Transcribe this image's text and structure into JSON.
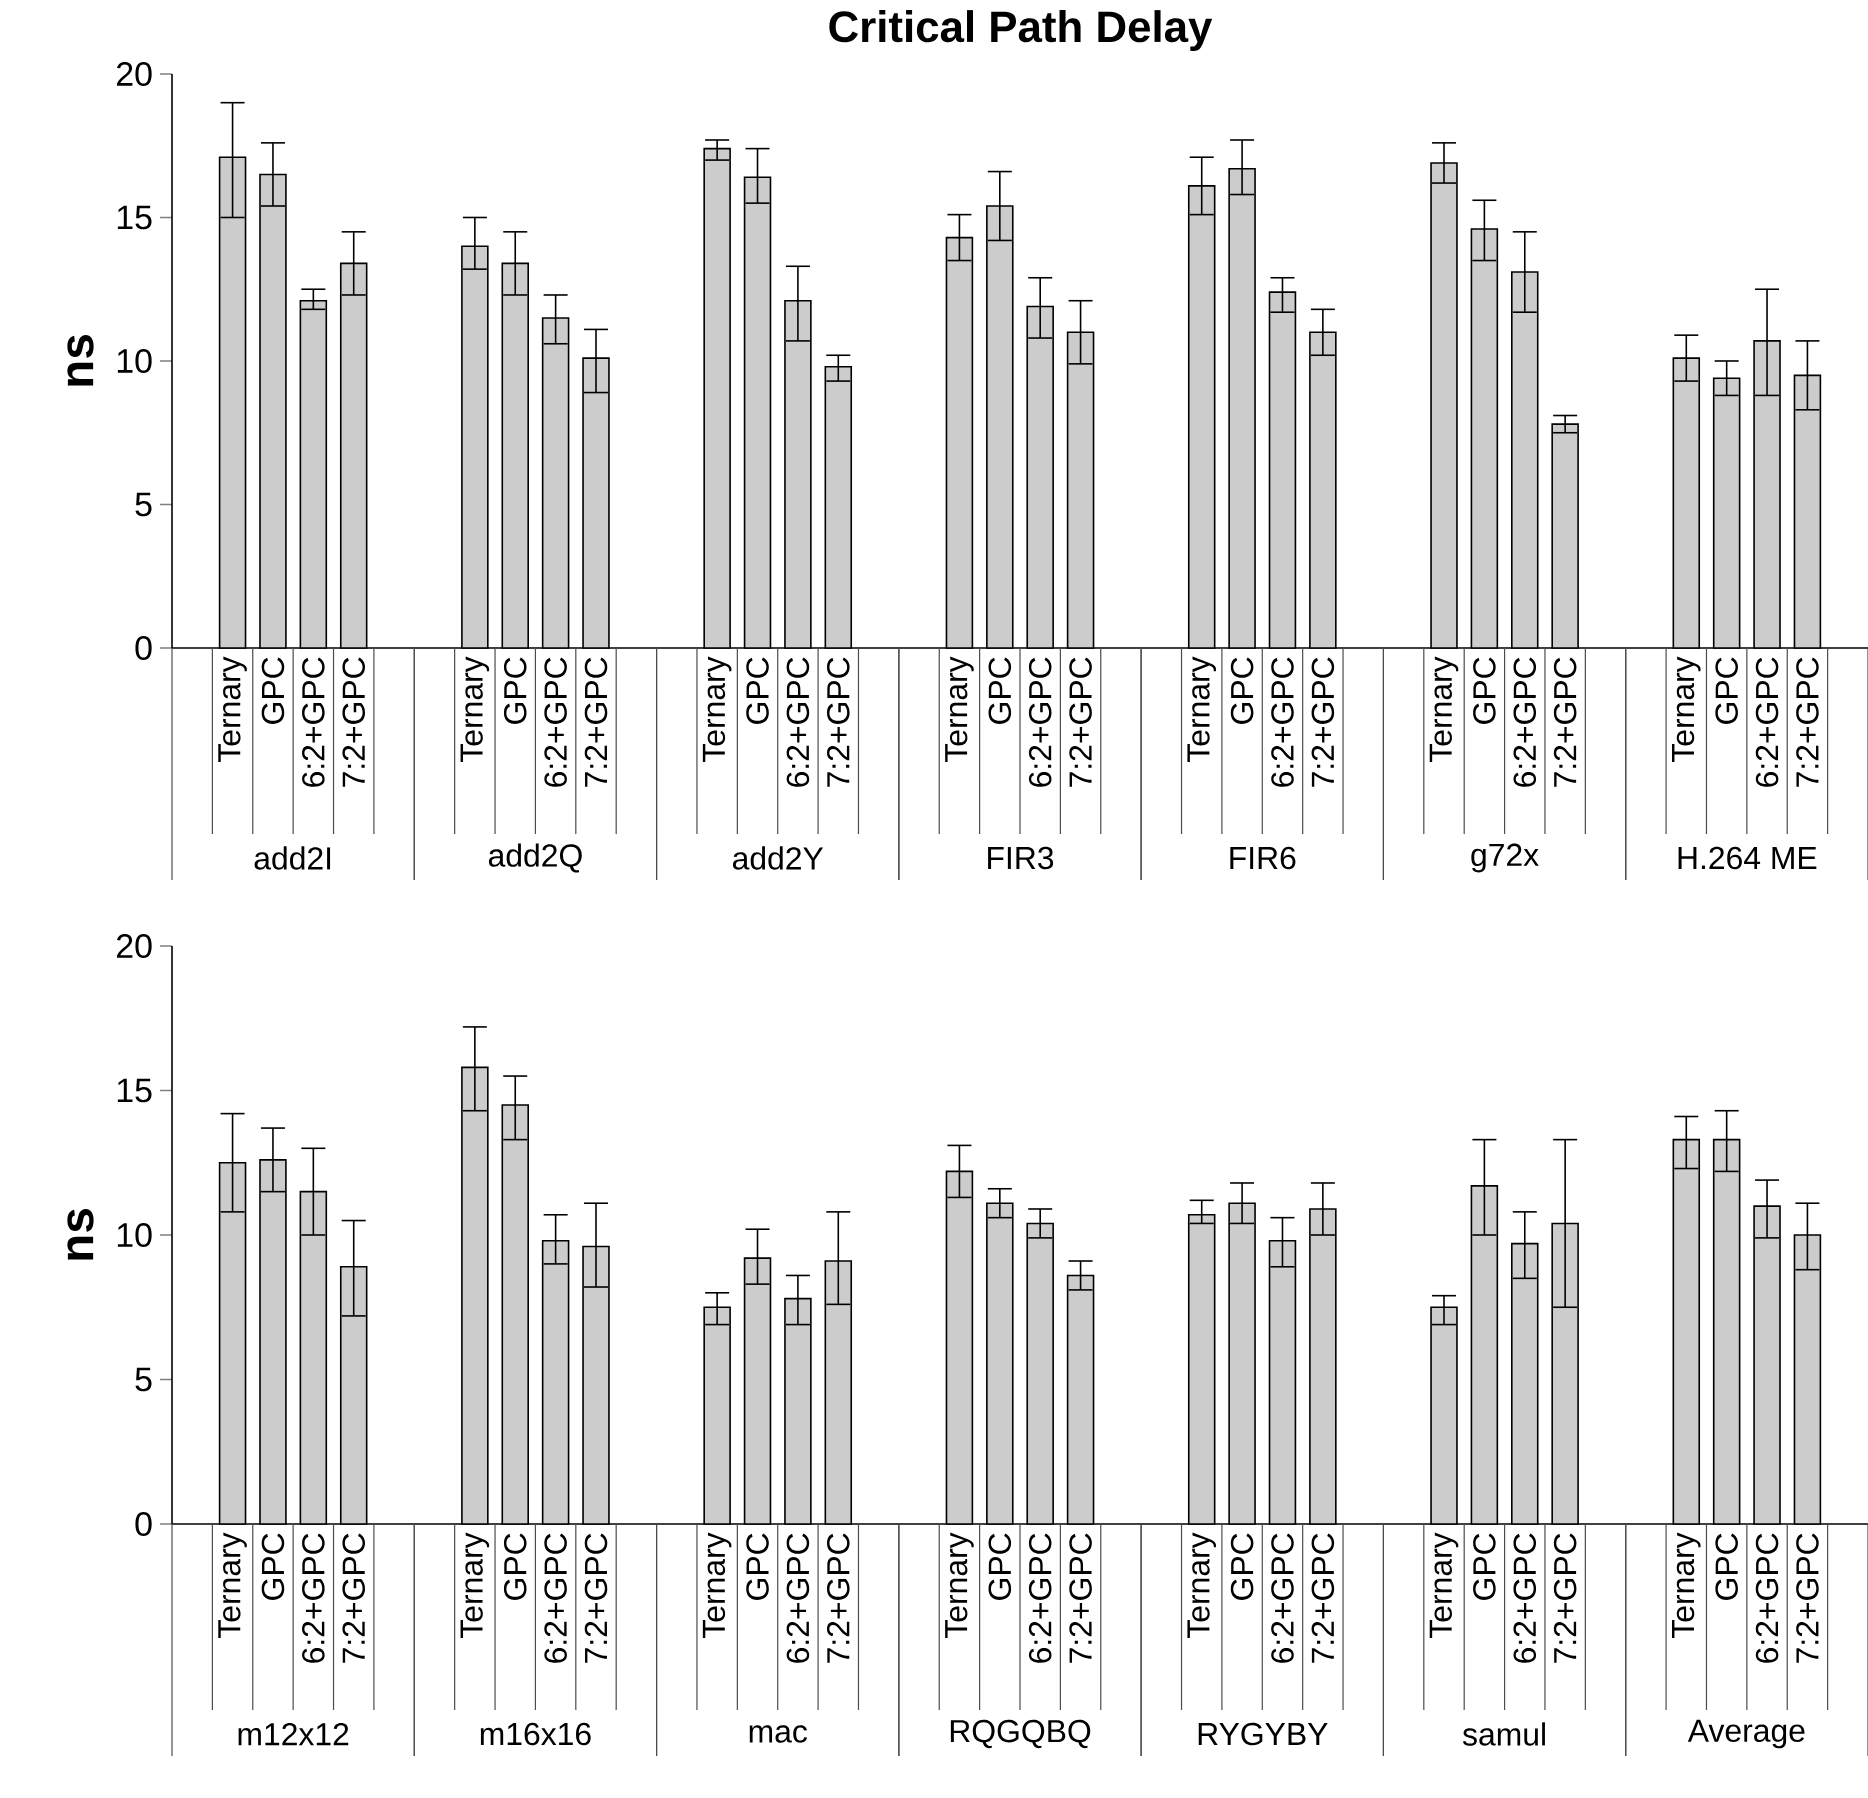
{
  "chart_data": [
    {
      "type": "bar",
      "title": "Critical Path Delay",
      "ylabel": "ns",
      "categories": [
        "add2I",
        "add2Q",
        "add2Y",
        "FIR3",
        "FIR6",
        "g72x",
        "H.264 ME"
      ],
      "ylim": [
        0,
        20
      ],
      "yticks": [
        0,
        5,
        10,
        15,
        20
      ],
      "series": [
        {
          "name": "Ternary",
          "color": "#cccccc",
          "values": [
            17.1,
            14.0,
            17.4,
            14.3,
            16.1,
            16.9,
            10.1
          ],
          "errors": [
            [
              15.0,
              19.0
            ],
            [
              13.2,
              15.0
            ],
            [
              17.0,
              17.7
            ],
            [
              13.5,
              15.1
            ],
            [
              15.1,
              17.1
            ],
            [
              16.2,
              17.6
            ],
            [
              9.3,
              10.9
            ]
          ]
        },
        {
          "name": "GPC",
          "color": "#cccccc",
          "values": [
            16.5,
            13.4,
            16.4,
            15.4,
            16.7,
            14.6,
            9.4
          ],
          "errors": [
            [
              15.4,
              17.6
            ],
            [
              12.3,
              14.5
            ],
            [
              15.5,
              17.4
            ],
            [
              14.2,
              16.6
            ],
            [
              15.8,
              17.7
            ],
            [
              13.5,
              15.6
            ],
            [
              8.8,
              10.0
            ]
          ]
        },
        {
          "name": "6:2+GPC",
          "color": "#cccccc",
          "values": [
            12.1,
            11.5,
            12.1,
            11.9,
            12.4,
            13.1,
            10.7
          ],
          "errors": [
            [
              11.8,
              12.5
            ],
            [
              10.6,
              12.3
            ],
            [
              10.7,
              13.3
            ],
            [
              10.8,
              12.9
            ],
            [
              11.7,
              12.9
            ],
            [
              11.7,
              14.5
            ],
            [
              8.8,
              12.5
            ]
          ]
        },
        {
          "name": "7:2+GPC",
          "color": "#cccccc",
          "values": [
            13.4,
            10.1,
            9.8,
            11.0,
            11.0,
            7.8,
            9.5
          ],
          "errors": [
            [
              12.3,
              14.5
            ],
            [
              8.9,
              11.1
            ],
            [
              9.3,
              10.2
            ],
            [
              9.9,
              12.1
            ],
            [
              10.2,
              11.8
            ],
            [
              7.5,
              8.1
            ],
            [
              8.3,
              10.7
            ]
          ]
        }
      ]
    },
    {
      "type": "bar",
      "ylabel": "ns",
      "categories": [
        "m12x12",
        "m16x16",
        "mac",
        "RQGQBQ",
        "RYGYBY",
        "samul",
        "Average"
      ],
      "ylim": [
        0,
        20
      ],
      "yticks": [
        0,
        5,
        10,
        15,
        20
      ],
      "series": [
        {
          "name": "Ternary",
          "color": "#cccccc",
          "values": [
            12.5,
            15.8,
            7.5,
            12.2,
            10.7,
            7.5,
            13.3
          ],
          "errors": [
            [
              10.8,
              14.2
            ],
            [
              14.3,
              17.2
            ],
            [
              6.9,
              8.0
            ],
            [
              11.3,
              13.1
            ],
            [
              10.4,
              11.2
            ],
            [
              6.9,
              7.9
            ],
            [
              12.3,
              14.1
            ]
          ]
        },
        {
          "name": "GPC",
          "color": "#cccccc",
          "values": [
            12.6,
            14.5,
            9.2,
            11.1,
            11.1,
            11.7,
            13.3
          ],
          "errors": [
            [
              11.5,
              13.7
            ],
            [
              13.3,
              15.5
            ],
            [
              8.3,
              10.2
            ],
            [
              10.6,
              11.6
            ],
            [
              10.4,
              11.8
            ],
            [
              10.0,
              13.3
            ],
            [
              12.2,
              14.3
            ]
          ]
        },
        {
          "name": "6:2+GPC",
          "color": "#cccccc",
          "values": [
            11.5,
            9.8,
            7.8,
            10.4,
            9.8,
            9.7,
            11.0
          ],
          "errors": [
            [
              10.0,
              13.0
            ],
            [
              9.0,
              10.7
            ],
            [
              6.9,
              8.6
            ],
            [
              9.9,
              10.9
            ],
            [
              8.9,
              10.6
            ],
            [
              8.5,
              10.8
            ],
            [
              9.9,
              11.9
            ]
          ]
        },
        {
          "name": "7:2+GPC",
          "color": "#cccccc",
          "values": [
            8.9,
            9.6,
            9.1,
            8.6,
            10.9,
            10.4,
            10.0
          ],
          "errors": [
            [
              7.2,
              10.5
            ],
            [
              8.2,
              11.1
            ],
            [
              7.6,
              10.8
            ],
            [
              8.1,
              9.1
            ],
            [
              10.0,
              11.8
            ],
            [
              7.5,
              13.3
            ],
            [
              8.8,
              11.1
            ]
          ]
        }
      ]
    }
  ]
}
